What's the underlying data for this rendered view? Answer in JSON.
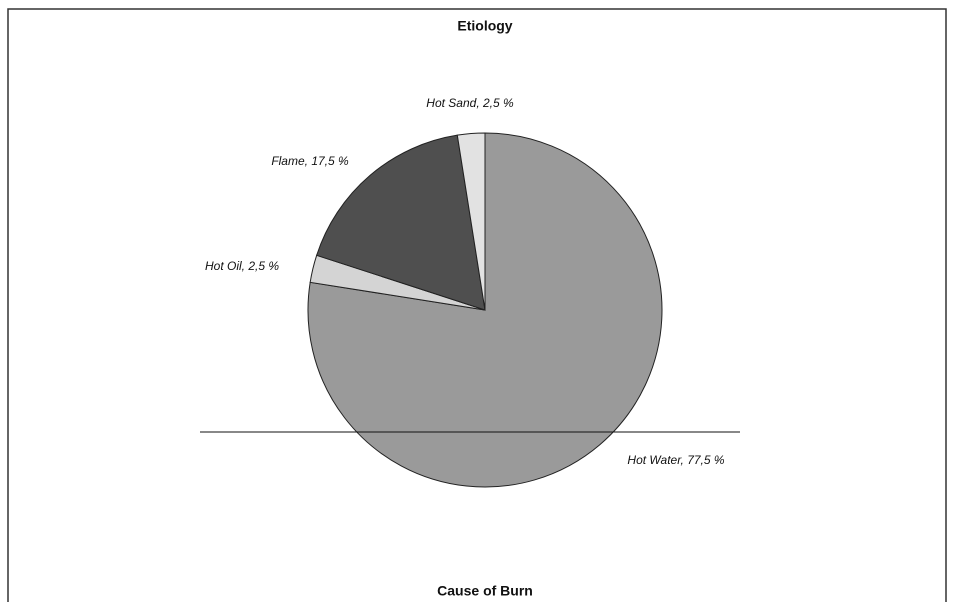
{
  "chart_data": {
    "type": "pie",
    "title": "Etiology",
    "xlabel": "Cause of Burn",
    "values": [
      77.5,
      2.5,
      17.5,
      2.5
    ],
    "value_labels": [
      "Hot Water, 77,5 %",
      "Hot Oil, 2,5 %",
      "Flame, 17,5 %",
      "Hot Sand, 2,5 %"
    ],
    "colors": [
      "#9a9a9a",
      "#d4d4d4",
      "#4f4f4f",
      "#e2e2e2"
    ]
  }
}
